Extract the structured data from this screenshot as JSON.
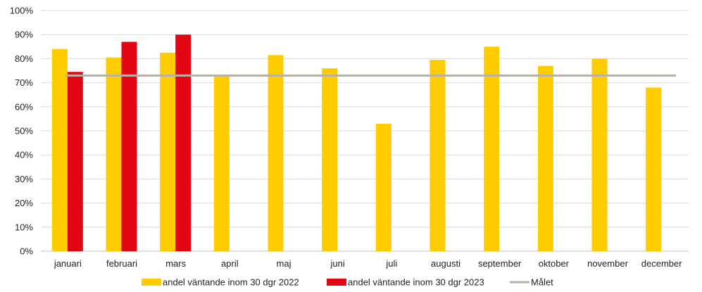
{
  "chart_data": {
    "type": "bar",
    "title": "",
    "xlabel": "",
    "ylabel": "",
    "ylim": [
      0,
      100
    ],
    "yticks": [
      0,
      10,
      20,
      30,
      40,
      50,
      60,
      70,
      80,
      90,
      100
    ],
    "ytick_suffix": "%",
    "grid": "horizontal",
    "legend_position": "bottom",
    "categories": [
      "januari",
      "februari",
      "mars",
      "april",
      "maj",
      "juni",
      "juli",
      "augusti",
      "september",
      "oktober",
      "november",
      "december"
    ],
    "series": [
      {
        "name": "andel väntande inom 30 dgr 2022",
        "color": "#FFCC00",
        "values": [
          84,
          80.5,
          82.5,
          73,
          81.5,
          76,
          53,
          79.5,
          85,
          77,
          80,
          68
        ]
      },
      {
        "name": "andel väntande inom 30 dgr 2023",
        "color": "#E30613",
        "values": [
          74.5,
          87,
          90,
          null,
          null,
          null,
          null,
          null,
          null,
          null,
          null,
          null
        ]
      }
    ],
    "reference_line": {
      "name": "Målet",
      "value": 73,
      "color": "#B7B0A8"
    }
  }
}
